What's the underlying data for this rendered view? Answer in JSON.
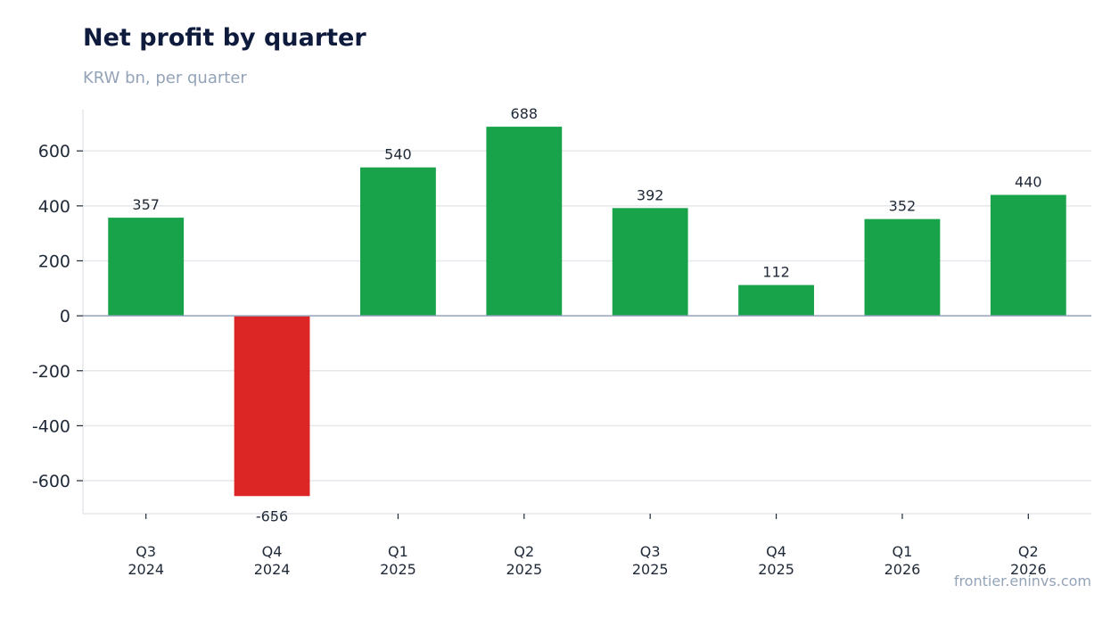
{
  "header": {
    "title": "Net profit by quarter",
    "subtitle": "KRW bn, per quarter"
  },
  "footer": {
    "source": "frontier.eninvs.com"
  },
  "colors": {
    "positive": "#18a34a",
    "negative": "#dc2626",
    "grid": "#e5e7eb",
    "zero_line": "#94a3b8",
    "axis": "#e5e7eb",
    "text": "#1f2937"
  },
  "chart_data": {
    "type": "bar",
    "title": "Net profit by quarter",
    "subtitle": "KRW bn, per quarter",
    "xlabel": "",
    "ylabel": "",
    "categories": [
      [
        "Q3",
        "2024"
      ],
      [
        "Q4",
        "2024"
      ],
      [
        "Q1",
        "2025"
      ],
      [
        "Q2",
        "2025"
      ],
      [
        "Q3",
        "2025"
      ],
      [
        "Q4",
        "2025"
      ],
      [
        "Q1",
        "2026"
      ],
      [
        "Q2",
        "2026"
      ]
    ],
    "values": [
      357,
      -656,
      540,
      688,
      392,
      112,
      352,
      440
    ],
    "ylim": [
      -720,
      750
    ],
    "yticks": [
      -600,
      -400,
      -200,
      0,
      200,
      400,
      600
    ],
    "grid": true,
    "legend": "none",
    "data_labels": true
  }
}
